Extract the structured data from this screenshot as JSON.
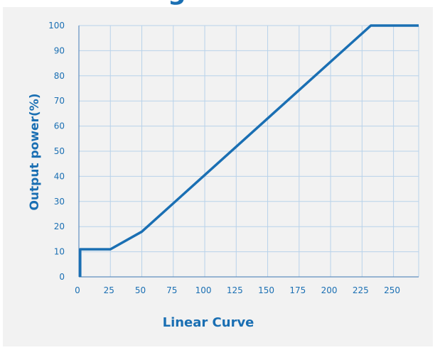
{
  "chart_data": {
    "type": "line",
    "title": "",
    "xlabel": "Linear Curve",
    "ylabel": "Output power(%)",
    "xlim": [
      0,
      270
    ],
    "ylim": [
      0,
      100
    ],
    "x_ticks": [
      0,
      25,
      50,
      75,
      100,
      125,
      150,
      175,
      200,
      225,
      250
    ],
    "y_ticks": [
      0,
      10,
      20,
      30,
      40,
      50,
      60,
      70,
      80,
      90,
      100
    ],
    "grid": true,
    "legend": "none",
    "series": [
      {
        "x": [
          1,
          1,
          2,
          25,
          50,
          232,
          270
        ],
        "y": [
          0,
          11,
          11,
          11,
          18,
          100,
          100
        ]
      }
    ],
    "colors": {
      "line": "#1a6fb3",
      "grid": "#b8d2ea",
      "axis": "#5f8fc0",
      "text": "#1a6fb3",
      "background": "#f2f2f2"
    }
  }
}
